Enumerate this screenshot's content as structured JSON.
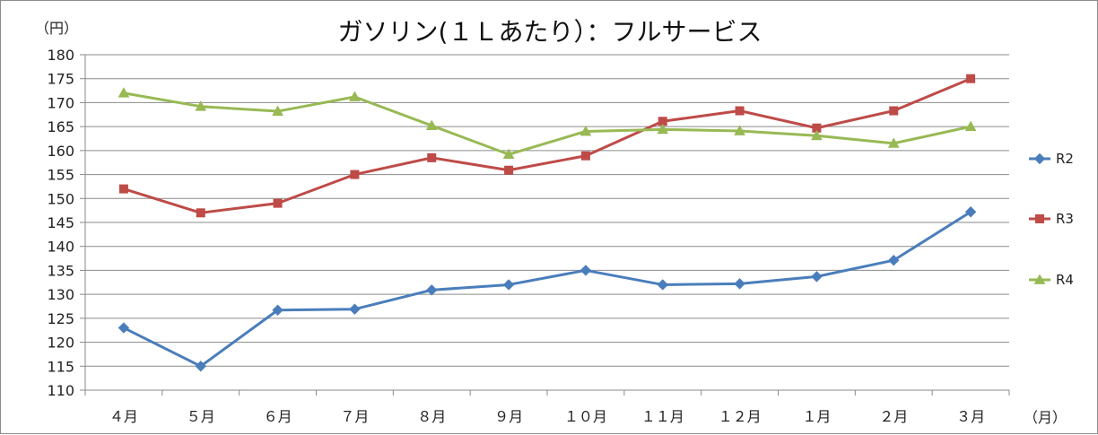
{
  "chart_data": {
    "type": "line",
    "title": "ガソリン(１Ｌあたり）：フルサービス",
    "ylabel_unit": "（円）",
    "xlabel_unit": "（月）",
    "categories": [
      "４月",
      "５月",
      "６月",
      "７月",
      "８月",
      "９月",
      "１０月",
      "１１月",
      "１２月",
      "１月",
      "２月",
      "３月"
    ],
    "ylim": [
      110,
      180
    ],
    "ytick_step": 5,
    "grid": true,
    "legend": "right",
    "series": [
      {
        "name": "R2",
        "color": "#4a7ebb",
        "marker": "diamond",
        "values": [
          123,
          115,
          126.7,
          126.9,
          130.9,
          132,
          135,
          132,
          132.2,
          133.7,
          137.1,
          147.2
        ]
      },
      {
        "name": "R3",
        "color": "#be4b48",
        "marker": "square",
        "values": [
          152,
          147,
          149,
          155,
          158.5,
          155.9,
          158.9,
          166.1,
          168.3,
          164.7,
          168.3,
          175
        ]
      },
      {
        "name": "R4",
        "color": "#98b954",
        "marker": "triangle",
        "values": [
          172,
          169.2,
          168.2,
          171.2,
          165.2,
          159.2,
          164,
          164.4,
          164.1,
          163.1,
          161.5,
          165
        ]
      }
    ]
  }
}
